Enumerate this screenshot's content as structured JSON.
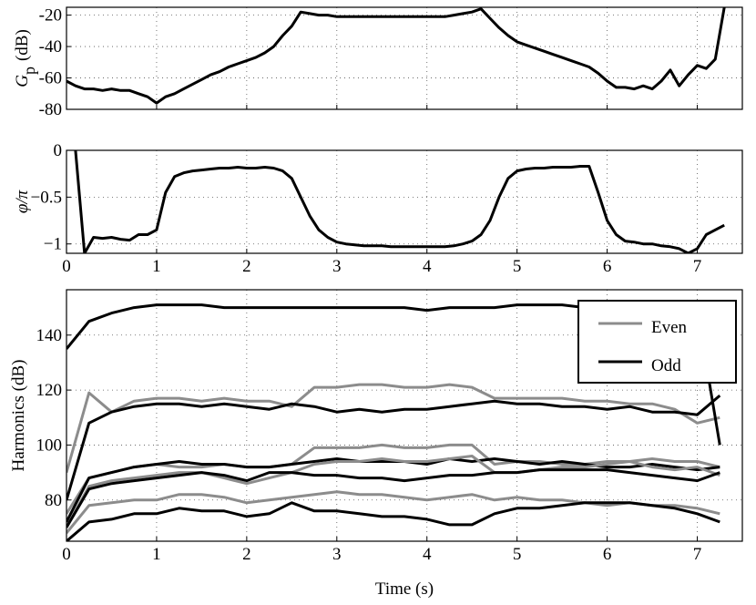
{
  "chart_data": [
    {
      "type": "line",
      "ylabel": {
        "symbol": "G",
        "subscript": "p",
        "unit": "(dB)"
      },
      "xlim": [
        0,
        7.5
      ],
      "xticks": [
        0,
        1,
        2,
        3,
        4,
        5,
        6,
        7
      ],
      "xticklabels": false,
      "ylim": [
        -80,
        -15
      ],
      "yticks": [
        -80,
        -60,
        -40,
        -20
      ],
      "grid": true,
      "x": [
        0,
        0.1,
        0.2,
        0.3,
        0.4,
        0.5,
        0.6,
        0.7,
        0.8,
        0.9,
        1,
        1.1,
        1.2,
        1.3,
        1.4,
        1.5,
        1.6,
        1.7,
        1.8,
        1.9,
        2,
        2.1,
        2.2,
        2.3,
        2.4,
        2.5,
        2.6,
        2.7,
        2.8,
        2.9,
        3,
        3.1,
        3.2,
        3.3,
        3.4,
        3.5,
        3.6,
        3.7,
        3.8,
        3.9,
        4,
        4.1,
        4.2,
        4.3,
        4.4,
        4.5,
        4.6,
        4.7,
        4.8,
        4.9,
        5,
        5.1,
        5.2,
        5.3,
        5.4,
        5.5,
        5.6,
        5.7,
        5.8,
        5.9,
        6,
        6.1,
        6.2,
        6.3,
        6.4,
        6.5,
        6.6,
        6.7,
        6.8,
        6.9,
        7,
        7.1,
        7.2,
        7.3
      ],
      "series": [
        {
          "color": "#000000",
          "values": [
            -62,
            -65,
            -67,
            -67,
            -68,
            -67,
            -68,
            -68,
            -70,
            -72,
            -76,
            -72,
            -70,
            -67,
            -64,
            -61,
            -58,
            -56,
            -53,
            -51,
            -49,
            -47,
            -44,
            -40,
            -33,
            -27,
            -18,
            -19,
            -20,
            -20,
            -21,
            -21,
            -21,
            -21,
            -21,
            -21,
            -21,
            -21,
            -21,
            -21,
            -21,
            -21,
            -21,
            -20,
            -19,
            -18,
            -16,
            -22,
            -28,
            -33,
            -37,
            -39,
            -41,
            -43,
            -45,
            -47,
            -49,
            -51,
            -53,
            -57,
            -62,
            -66,
            -66,
            -67,
            -65,
            -67,
            -62,
            -55,
            -65,
            -58,
            -52,
            -54,
            -48,
            -15
          ]
        }
      ]
    },
    {
      "type": "line",
      "ylabel": "φ/π",
      "xlim": [
        0,
        7.5
      ],
      "xticks": [
        0,
        1,
        2,
        3,
        4,
        5,
        6,
        7
      ],
      "xticklabels": true,
      "ylim": [
        -1.1,
        0
      ],
      "yticks": [
        {
          "value": -1,
          "label": "−1"
        },
        {
          "value": -0.5,
          "label": "−0.5"
        },
        0
      ],
      "grid": true,
      "x": [
        0,
        0.1,
        0.2,
        0.3,
        0.4,
        0.5,
        0.6,
        0.7,
        0.8,
        0.9,
        1,
        1.1,
        1.2,
        1.3,
        1.4,
        1.5,
        1.6,
        1.7,
        1.8,
        1.9,
        2,
        2.1,
        2.2,
        2.3,
        2.4,
        2.5,
        2.6,
        2.7,
        2.8,
        2.9,
        3,
        3.1,
        3.2,
        3.3,
        3.4,
        3.5,
        3.6,
        3.7,
        3.8,
        3.9,
        4,
        4.1,
        4.2,
        4.3,
        4.4,
        4.5,
        4.6,
        4.7,
        4.8,
        4.9,
        5,
        5.1,
        5.2,
        5.3,
        5.4,
        5.5,
        5.6,
        5.7,
        5.8,
        5.9,
        6,
        6.1,
        6.2,
        6.3,
        6.4,
        6.5,
        6.6,
        6.7,
        6.8,
        6.9,
        7,
        7.1,
        7.2,
        7.3
      ],
      "series": [
        {
          "color": "#000000",
          "values": [
            null,
            0,
            -1.1,
            -0.93,
            -0.94,
            -0.93,
            -0.95,
            -0.96,
            -0.9,
            -0.9,
            -0.85,
            -0.45,
            -0.28,
            -0.24,
            -0.22,
            -0.21,
            -0.2,
            -0.19,
            -0.19,
            -0.18,
            -0.19,
            -0.19,
            -0.18,
            -0.19,
            -0.22,
            -0.3,
            -0.5,
            -0.7,
            -0.85,
            -0.93,
            -0.98,
            -1,
            -1.01,
            -1.02,
            -1.02,
            -1.02,
            -1.03,
            -1.03,
            -1.03,
            -1.03,
            -1.03,
            -1.03,
            -1.03,
            -1.02,
            -1,
            -0.97,
            -0.9,
            -0.75,
            -0.5,
            -0.3,
            -0.22,
            -0.2,
            -0.19,
            -0.19,
            -0.18,
            -0.18,
            -0.18,
            -0.17,
            -0.17,
            -0.45,
            -0.75,
            -0.9,
            -0.97,
            -0.98,
            -1,
            -1,
            -1.02,
            -1.03,
            -1.05,
            -1.1,
            -1.05,
            -0.9,
            -0.85,
            -0.8
          ]
        }
      ]
    },
    {
      "type": "line",
      "ylabel": "Harmonics (dB)",
      "xlabel": "Time (s)",
      "xlim": [
        0,
        7.5
      ],
      "xticks": [
        0,
        1,
        2,
        3,
        4,
        5,
        6,
        7
      ],
      "xticklabels": true,
      "ylim": [
        65,
        156.5
      ],
      "yticks": [
        80,
        100,
        120,
        140
      ],
      "grid": true,
      "legend": "upper right",
      "x": [
        0,
        0.25,
        0.5,
        0.75,
        1,
        1.25,
        1.5,
        1.75,
        2,
        2.25,
        2.5,
        2.75,
        3,
        3.25,
        3.5,
        3.75,
        4,
        4.25,
        4.5,
        4.75,
        5,
        5.25,
        5.5,
        5.75,
        6,
        6.25,
        6.5,
        6.75,
        7,
        7.25
      ],
      "series": [
        {
          "name": "Even",
          "color": "#8c8c8c",
          "values": [
            90,
            119,
            112,
            116,
            117,
            117,
            116,
            117,
            116,
            116,
            114,
            121,
            121,
            122,
            122,
            121,
            121,
            122,
            121,
            117,
            117,
            117,
            117,
            116,
            116,
            115,
            115,
            113,
            108,
            110
          ]
        },
        {
          "name": "Odd",
          "color": "#000000",
          "values": [
            135,
            145,
            148,
            150,
            151,
            151,
            151,
            150,
            150,
            150,
            150,
            150,
            150,
            150,
            150,
            150,
            149,
            150,
            150,
            150,
            151,
            151,
            151,
            150,
            150,
            150,
            150,
            150,
            149,
            100
          ]
        },
        {
          "name": "Odd",
          "color": "#000000",
          "values": [
            80,
            108,
            112,
            114,
            115,
            115,
            114,
            115,
            114,
            113,
            115,
            114,
            112,
            113,
            112,
            113,
            113,
            114,
            115,
            116,
            115,
            115,
            114,
            114,
            113,
            114,
            112,
            112,
            111,
            118
          ]
        },
        {
          "name": "Even",
          "color": "#8c8c8c",
          "values": [
            75,
            88,
            90,
            92,
            93,
            92,
            92,
            93,
            92,
            92,
            93,
            99,
            99,
            99,
            100,
            99,
            99,
            100,
            100,
            93,
            94,
            94,
            93,
            93,
            94,
            94,
            95,
            94,
            94,
            92
          ]
        },
        {
          "name": "Odd",
          "color": "#000000",
          "values": [
            72,
            88,
            90,
            92,
            93,
            94,
            93,
            93,
            92,
            92,
            93,
            94,
            95,
            94,
            94,
            94,
            93,
            95,
            94,
            95,
            94,
            93,
            94,
            93,
            92,
            92,
            93,
            92,
            91,
            92
          ]
        },
        {
          "name": "Even",
          "color": "#8c8c8c",
          "values": [
            70,
            85,
            87,
            88,
            89,
            90,
            90,
            88,
            86,
            88,
            90,
            93,
            94,
            94,
            95,
            94,
            94,
            95,
            96,
            90,
            90,
            91,
            92,
            92,
            93,
            94,
            92,
            91,
            92,
            89
          ]
        },
        {
          "name": "Odd",
          "color": "#000000",
          "values": [
            70,
            84,
            86,
            87,
            88,
            89,
            90,
            89,
            87,
            90,
            90,
            89,
            89,
            88,
            88,
            87,
            88,
            89,
            89,
            90,
            90,
            91,
            91,
            91,
            91,
            90,
            89,
            88,
            87,
            90
          ]
        },
        {
          "name": "Even",
          "color": "#8c8c8c",
          "values": [
            68,
            78,
            79,
            80,
            80,
            82,
            82,
            81,
            79,
            80,
            81,
            82,
            83,
            82,
            82,
            81,
            80,
            81,
            82,
            80,
            81,
            80,
            80,
            79,
            78,
            79,
            78,
            78,
            77,
            75
          ]
        },
        {
          "name": "Odd",
          "color": "#000000",
          "values": [
            65,
            72,
            73,
            75,
            75,
            77,
            76,
            76,
            74,
            75,
            79,
            76,
            76,
            75,
            74,
            74,
            73,
            71,
            71,
            75,
            77,
            77,
            78,
            79,
            79,
            79,
            78,
            77,
            75,
            72
          ]
        }
      ]
    }
  ]
}
